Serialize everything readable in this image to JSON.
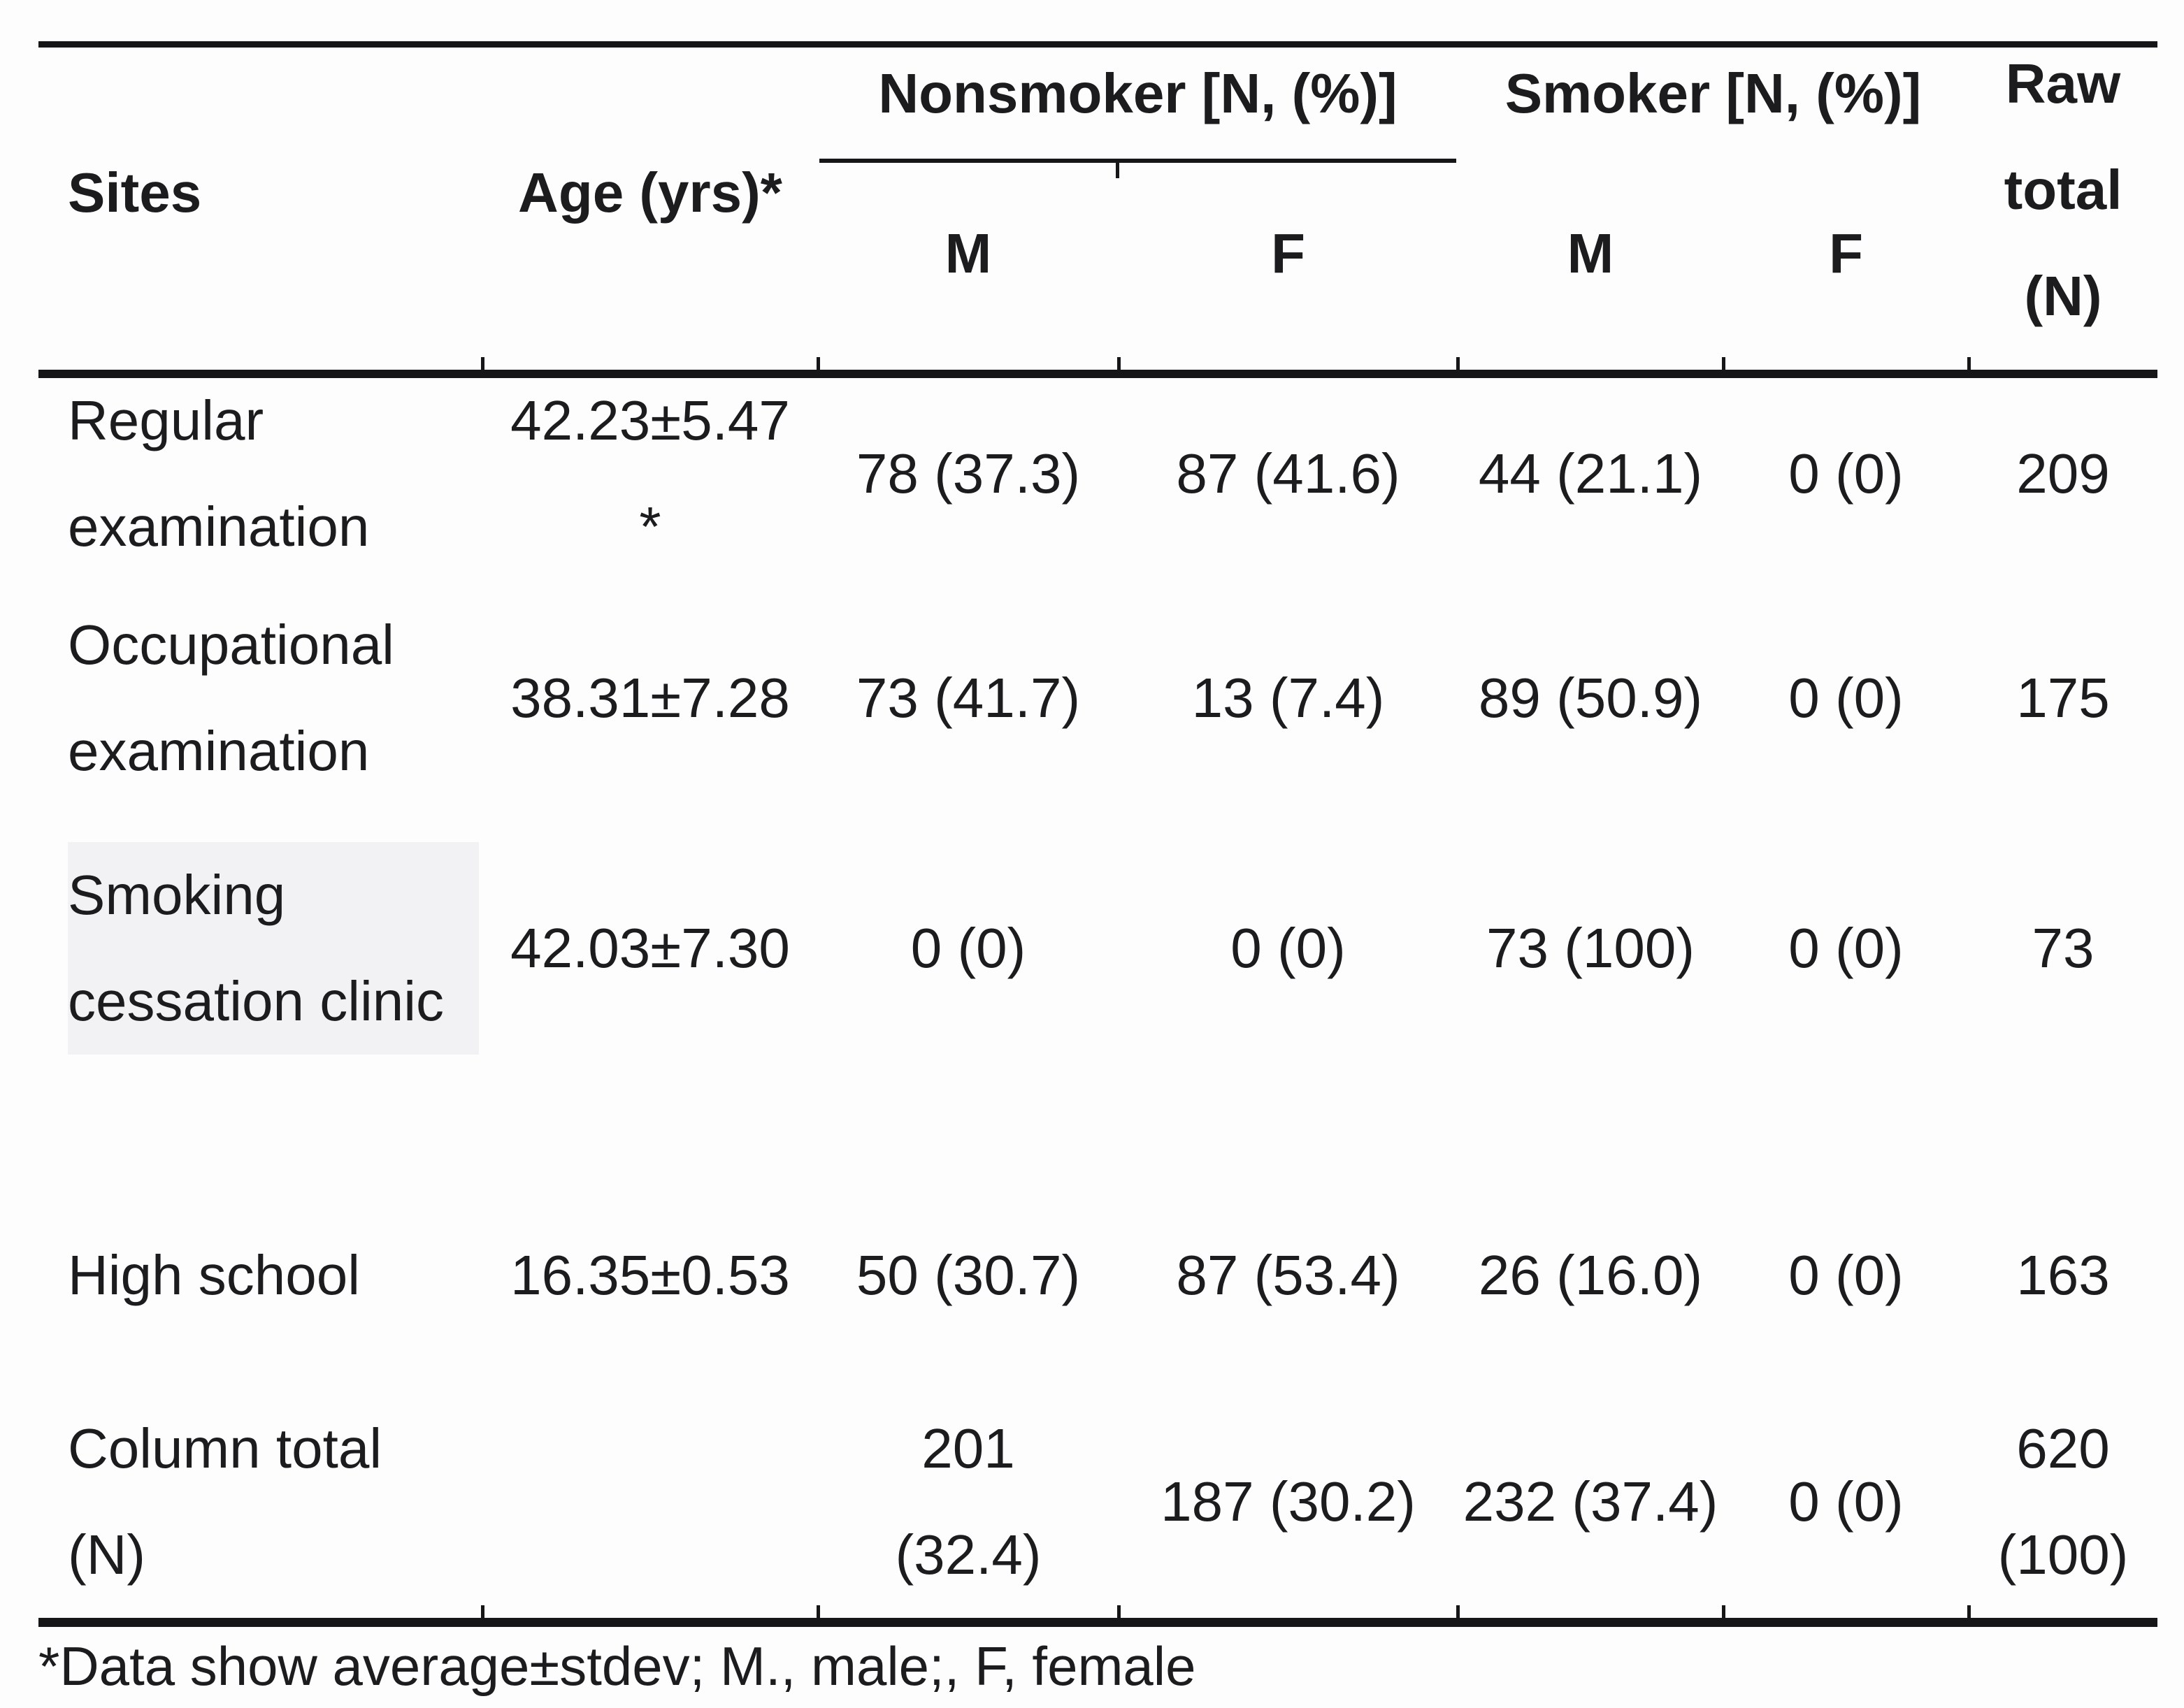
{
  "table": {
    "header": {
      "sites": "Sites",
      "age": "Age (yrs)*",
      "nonsmoker_group": "Nonsmoker [N, (%)]",
      "smoker_group": "Smoker [N, (%)]",
      "sub_m": "M",
      "sub_f": "F",
      "raw_total": [
        "Raw",
        "total",
        "(N)"
      ]
    },
    "rows": [
      {
        "site": [
          "Regular",
          "examination"
        ],
        "age": [
          "42.23±5.47",
          "*"
        ],
        "nonsmoker_m": "78 (37.3)",
        "nonsmoker_f": "87 (41.6)",
        "smoker_m": "44 (21.1)",
        "smoker_f": "0 (0)",
        "raw_total": "209"
      },
      {
        "site": [
          "Occupational",
          "examination"
        ],
        "age": "38.31±7.28",
        "nonsmoker_m": "73 (41.7)",
        "nonsmoker_f": "13 (7.4)",
        "smoker_m": "89 (50.9)",
        "smoker_f": "0 (0)",
        "raw_total": "175"
      },
      {
        "site": [
          "Smoking",
          "cessation clinic"
        ],
        "age": "42.03±7.30",
        "nonsmoker_m": "0 (0)",
        "nonsmoker_f": "0 (0)",
        "smoker_m": "73 (100)",
        "smoker_f": "0 (0)",
        "raw_total": "73"
      },
      {
        "site": [
          "High school"
        ],
        "age": "16.35±0.53",
        "nonsmoker_m": "50 (30.7)",
        "nonsmoker_f": "87 (53.4)",
        "smoker_m": "26 (16.0)",
        "smoker_f": "0 (0)",
        "raw_total": "163"
      },
      {
        "site": [
          "Column total",
          "(N)"
        ],
        "age": "",
        "nonsmoker_m": [
          "201",
          "(32.4)"
        ],
        "nonsmoker_f": "187 (30.2)",
        "smoker_m": "232 (37.4)",
        "smoker_f": "0 (0)",
        "raw_total": [
          "620",
          "(100)"
        ]
      }
    ],
    "footnote": "*Data show average±stdev; M., male;, F, female"
  },
  "colors": {
    "text": "#1c1c1e",
    "rule": "#161618",
    "background": "#fdfdfe",
    "highlight": "#f2f2f4"
  }
}
